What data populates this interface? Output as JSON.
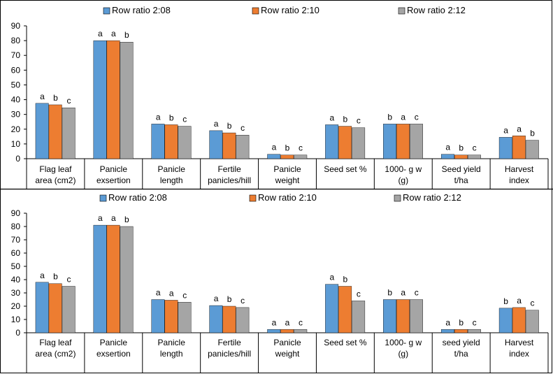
{
  "colors": {
    "series": [
      "#5b9bd5",
      "#ed7d31",
      "#a5a5a5"
    ],
    "border": "#000000",
    "axis": "#000000"
  },
  "chart_data": [
    {
      "type": "bar",
      "categories": [
        [
          "Flag leaf",
          "area (cm2)"
        ],
        [
          "Panicle",
          "exsertion"
        ],
        [
          "Panicle",
          "length"
        ],
        [
          "Fertile",
          "panicles/hill"
        ],
        [
          "Panicle",
          "weight"
        ],
        [
          "Seed set %"
        ],
        [
          "1000- g w",
          "(g)"
        ],
        [
          "Seed yield",
          "t/ha"
        ],
        [
          "Harvest",
          "index"
        ]
      ],
      "series": [
        {
          "name": "Row ratio 2:08",
          "values": [
            37.5,
            80,
            23.5,
            19,
            3,
            23,
            23.5,
            3,
            14.5
          ],
          "letters": [
            "a",
            "a",
            "a",
            "a",
            "a",
            "a",
            "b",
            "a",
            "a"
          ]
        },
        {
          "name": "Row ratio 2:10",
          "values": [
            36.5,
            80,
            23,
            17.5,
            2.5,
            22,
            23.5,
            2.5,
            15.5
          ],
          "letters": [
            "b",
            "a",
            "b",
            "b",
            "b",
            "b",
            "a",
            "b",
            "a"
          ]
        },
        {
          "name": "Row ratio 2:12",
          "values": [
            34.5,
            79,
            22,
            16,
            2.5,
            21,
            23.5,
            2.5,
            12.5
          ],
          "letters": [
            "c",
            "b",
            "c",
            "c",
            "c",
            "c",
            "c",
            "c",
            "b"
          ]
        }
      ],
      "yticks": [
        0,
        10,
        20,
        30,
        40,
        50,
        60,
        70,
        80,
        90
      ],
      "ylim": [
        0,
        90
      ],
      "legend": "top-center",
      "grid": false
    },
    {
      "type": "bar",
      "categories": [
        [
          "Flag leaf",
          "area (cm2)"
        ],
        [
          "Panicle",
          "exsertion"
        ],
        [
          "Panicle",
          "length"
        ],
        [
          "Fertile",
          "panicles/hill"
        ],
        [
          "Panicle",
          "weight"
        ],
        [
          "Seed set %"
        ],
        [
          "1000- g w",
          "(g)"
        ],
        [
          "seed yield",
          "t/ha"
        ],
        [
          "Harvest",
          "index"
        ]
      ],
      "series": [
        {
          "name": "Row ratio 2:08",
          "values": [
            38,
            81,
            25,
            20.5,
            2.5,
            36.5,
            25,
            2.5,
            18.5
          ],
          "letters": [
            "a",
            "a",
            "a",
            "a",
            "a",
            "a",
            "b",
            "a",
            "b"
          ]
        },
        {
          "name": "Row ratio 2:10",
          "values": [
            37,
            81,
            24.5,
            20,
            2.5,
            35,
            25,
            2.5,
            19
          ],
          "letters": [
            "b",
            "a",
            "a",
            "b",
            "a",
            "b",
            "a",
            "b",
            "a"
          ]
        },
        {
          "name": "Row ratio 2:12",
          "values": [
            35,
            80,
            23,
            19,
            2.5,
            24,
            25,
            2.5,
            17
          ],
          "letters": [
            "c",
            "b",
            "c",
            "c",
            "c",
            "c",
            "c",
            "c",
            "c"
          ]
        }
      ],
      "yticks": [
        0,
        10,
        20,
        30,
        40,
        50,
        60,
        70,
        80,
        90
      ],
      "ylim": [
        0,
        90
      ],
      "legend": "top-center",
      "grid": false
    }
  ]
}
